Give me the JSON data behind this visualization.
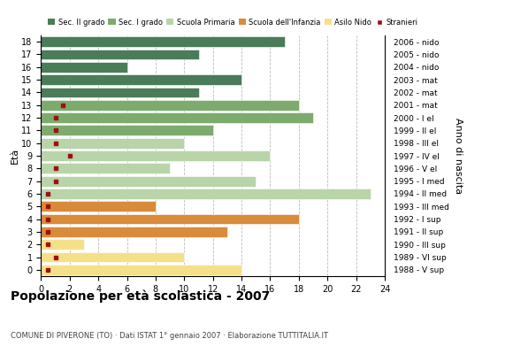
{
  "ages": [
    0,
    1,
    2,
    3,
    4,
    5,
    6,
    7,
    8,
    9,
    10,
    11,
    12,
    13,
    14,
    15,
    16,
    17,
    18
  ],
  "years": [
    "2006 - nido",
    "2005 - nido",
    "2004 - nido",
    "2003 - mat",
    "2002 - mat",
    "2001 - mat",
    "2000 - I el",
    "1999 - II el",
    "1998 - III el",
    "1997 - IV el",
    "1996 - V el",
    "1995 - I med",
    "1994 - II med",
    "1993 - III med",
    "1992 - I sup",
    "1991 - II sup",
    "1990 - III sup",
    "1989 - VI sup",
    "1988 - V sup"
  ],
  "bar_values": [
    14,
    10,
    3,
    13,
    18,
    8,
    23,
    15,
    9,
    16,
    10,
    12,
    19,
    18,
    11,
    14,
    6,
    11,
    17
  ],
  "stranieri_x": [
    0.5,
    1.0,
    0.5,
    0.5,
    0.5,
    0.5,
    0.5,
    1.0,
    1.0,
    2.0,
    1.0,
    1.0,
    1.0,
    1.5,
    -1,
    -1,
    -1,
    -1,
    -1
  ],
  "colors": {
    "sec2": "#4a7c59",
    "sec1": "#7dab6e",
    "primaria": "#b8d4a8",
    "infanzia": "#d98b3a",
    "nido": "#f5e08a",
    "stranieri": "#a01010"
  },
  "legend_labels": [
    "Sec. II grado",
    "Sec. I grado",
    "Scuola Primaria",
    "Scuola dell'Infanzia",
    "Asilo Nido",
    "Stranieri"
  ],
  "title": "Popolazione per età scolastica - 2007",
  "subtitle": "COMUNE DI PIVERONE (TO) · Dati ISTAT 1° gennaio 2007 · Elaborazione TUTTITALIA.IT",
  "ylabel": "Età",
  "ylabel2": "Anno di nascita",
  "xlim": [
    0,
    24
  ],
  "xticks": [
    0,
    2,
    4,
    6,
    8,
    10,
    12,
    14,
    16,
    18,
    20,
    22,
    24
  ],
  "background_color": "#ffffff",
  "grid_color": "#bbbbbb"
}
